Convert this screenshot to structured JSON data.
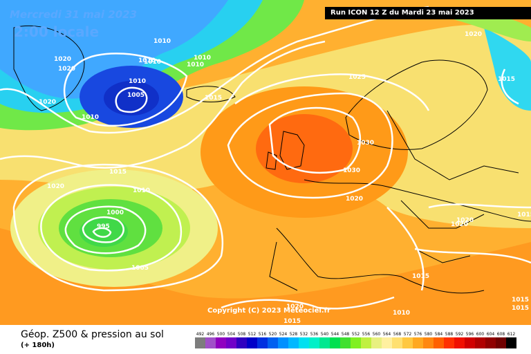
{
  "header": {
    "date": "Mercredi 31 mai 2023",
    "time": "2:00 locale",
    "run": "Run ICON 12 Z du Mardi 23 mai 2023"
  },
  "map": {
    "copyright": "Copyright (C) 2023 Meteociel.fr",
    "isobar_labels": [
      "1010",
      "1010",
      "1010",
      "1010",
      "1020",
      "1020",
      "1020",
      "1010",
      "1005",
      "1010",
      "1010",
      "1015",
      "1025",
      "1020",
      "1015",
      "1030",
      "1030",
      "1020",
      "1015",
      "1020",
      "1010",
      "1000",
      "995",
      "1005",
      "1020",
      "1020",
      "1015",
      "1015",
      "1010",
      "1015",
      "1015",
      "1015",
      "1020"
    ],
    "pressure_centres": [
      "995",
      "1005",
      "1030"
    ]
  },
  "legend": {
    "title": "Géop. Z500 & pression au sol",
    "subtitle": "(+ 180h)",
    "scale": [
      "492",
      "496",
      "500",
      "504",
      "508",
      "512",
      "516",
      "520",
      "524",
      "528",
      "532",
      "536",
      "540",
      "544",
      "548",
      "552",
      "556",
      "560",
      "564",
      "568",
      "572",
      "576",
      "580",
      "584",
      "588",
      "592",
      "596",
      "600",
      "604",
      "608",
      "612"
    ],
    "colors": [
      "#7d7d7d",
      "#a050c8",
      "#9000c0",
      "#7000c8",
      "#3000c0",
      "#0000c8",
      "#0030e0",
      "#0060f0",
      "#0090ff",
      "#00b8ff",
      "#00e0f0",
      "#00f0c8",
      "#00e890",
      "#00e050",
      "#40e030",
      "#80f020",
      "#c0f040",
      "#e8f080",
      "#fff0a0",
      "#ffe070",
      "#ffc840",
      "#ffa820",
      "#ff8810",
      "#ff6000",
      "#ff3000",
      "#f01000",
      "#d00000",
      "#b00000",
      "#900000",
      "#700000",
      "#000000"
    ]
  },
  "map_colors": {
    "ocean_low_deep": "#1040d8",
    "low_blue": "#2a78ff",
    "cyan": "#20c8f0",
    "green": "#40e040",
    "yellow_green": "#c8f040",
    "yellow": "#f8e868",
    "orange": "#ffb030",
    "dark_orange": "#ff8010",
    "red_orange": "#ff5a10",
    "isobar": "#ffffff",
    "coast": "#000000"
  }
}
